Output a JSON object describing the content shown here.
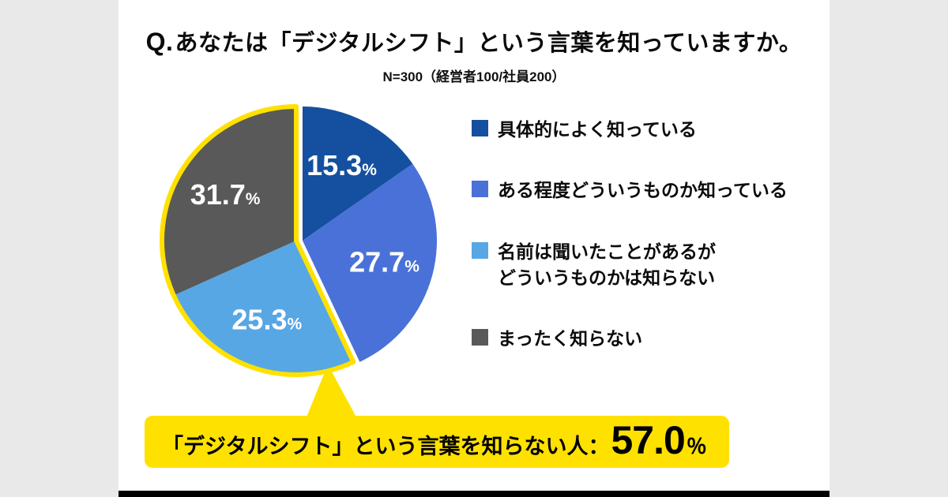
{
  "page": {
    "outer_bg": "#e9e9e9",
    "card_bg": "#ffffff",
    "accent_yellow": "#ffe100",
    "footer_bar": "#000000"
  },
  "header": {
    "q_prefix": "Q.",
    "title": "あなたは「デジタルシフト」という言葉を知っていますか。",
    "sample_note": "N=300（経営者100/社員200）"
  },
  "chart_data": {
    "type": "pie",
    "title": "あなたは「デジタルシフト」という言葉を知っていますか。",
    "sample_note": "N=300（経営者100/社員200）",
    "unit": "%",
    "start_angle_deg": -90,
    "direction": "clockwise",
    "legend_position": "right",
    "segments": [
      {
        "label": "具体的によく知っている",
        "value": 15.3,
        "color": "#14509f",
        "group": "aware",
        "exploded": true,
        "label_color": "#ffffff"
      },
      {
        "label": "ある程度どういうものか知っている",
        "value": 27.7,
        "color": "#4a71d8",
        "group": "aware",
        "exploded": true,
        "label_color": "#ffffff"
      },
      {
        "label": "名前は聞いたことがあるが\nどういうものかは知らない",
        "value": 25.3,
        "color": "#57a7e4",
        "group": "unaware",
        "exploded": false,
        "label_color": "#ffffff"
      },
      {
        "label": "まったく知らない",
        "value": 31.7,
        "color": "#595959",
        "group": "unaware",
        "exploded": false,
        "label_color": "#ffffff"
      }
    ],
    "highlight": {
      "group": "unaware",
      "total": 57.0,
      "outline_color": "#ffe100"
    }
  },
  "callout": {
    "label": "「デジタルシフト」という言葉を知らない人：",
    "value": "57.0",
    "unit": "％",
    "bg": "#ffe100",
    "text_color": "#000000"
  }
}
